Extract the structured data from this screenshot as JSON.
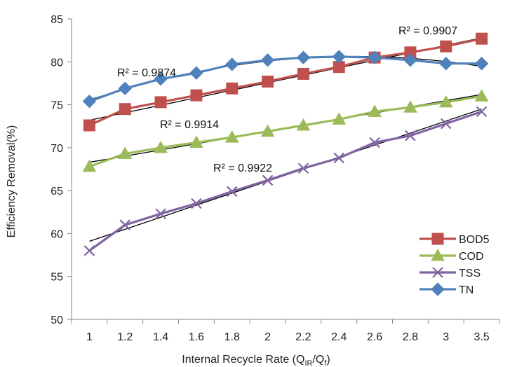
{
  "chart_data": {
    "type": "line",
    "title": "",
    "xlabel": "Internal Recycle Rate (Q",
    "xlabel_sub1": "IR",
    "xlabel_mid": "/Q",
    "xlabel_sub2": "f",
    "xlabel_end": ")",
    "ylabel": "Efficiency Removal(%)",
    "ylim": [
      50,
      85
    ],
    "yticks": [
      50,
      55,
      60,
      65,
      70,
      75,
      80,
      85
    ],
    "categories": [
      "1",
      "1.2",
      "1.4",
      "1.6",
      "1.8",
      "2",
      "2.2",
      "2.4",
      "2.6",
      "2.8",
      "3",
      "3.5"
    ],
    "grid": false,
    "legend_position": "bottom-right",
    "series": [
      {
        "name": "BOD5",
        "color": "#c0504d",
        "marker": "square",
        "values": [
          72.6,
          74.5,
          75.3,
          76.1,
          76.9,
          77.7,
          78.6,
          79.4,
          80.5,
          81.1,
          81.8,
          82.7
        ],
        "trend": {
          "type": "linear",
          "start": 73.2,
          "end": 82.8,
          "r2_label": "R² = 0.9907"
        }
      },
      {
        "name": "COD",
        "color": "#9bbb59",
        "marker": "triangle",
        "values": [
          67.8,
          69.3,
          70.0,
          70.6,
          71.2,
          71.9,
          72.6,
          73.3,
          74.2,
          74.7,
          75.3,
          76.0
        ],
        "trend": {
          "type": "linear",
          "start": 68.3,
          "end": 76.2,
          "r2_label": "R² = 0.9914"
        }
      },
      {
        "name": "TSS",
        "color": "#8064a2",
        "marker": "x",
        "values": [
          58.0,
          61.0,
          62.3,
          63.5,
          64.9,
          66.2,
          67.6,
          68.8,
          70.6,
          71.4,
          72.8,
          74.2
        ],
        "trend": {
          "type": "linear",
          "start": 59.1,
          "end": 74.5,
          "r2_label": "R² = 0.9922"
        }
      },
      {
        "name": "TN",
        "color": "#4f81bd",
        "marker": "diamond",
        "values": [
          75.4,
          76.9,
          78.0,
          78.7,
          79.7,
          80.2,
          80.5,
          80.6,
          80.5,
          80.2,
          79.8,
          79.8
        ],
        "trend": {
          "type": "quadratic",
          "r2_label": "R² = 0.9874"
        }
      }
    ]
  }
}
